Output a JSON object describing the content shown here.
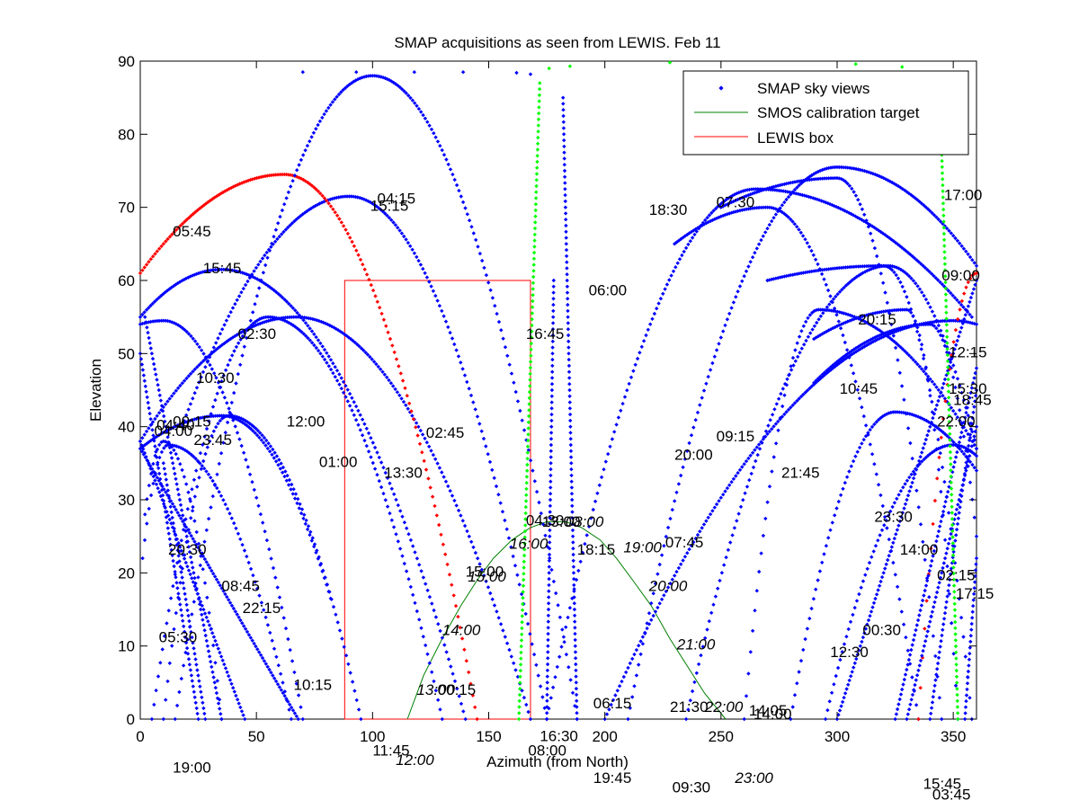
{
  "chart_data": {
    "type": "scatter",
    "title": "SMAP acquisitions as seen from LEWIS. Feb 11",
    "xlabel": "Azimuth (from North)",
    "ylabel": "Elevation",
    "xlim": [
      0,
      360
    ],
    "ylim": [
      0,
      90
    ],
    "xticks": [
      "0",
      "50",
      "100",
      "150",
      "200",
      "250",
      "300",
      "350"
    ],
    "yticks": [
      "0",
      "10",
      "20",
      "30",
      "40",
      "50",
      "60",
      "70",
      "80",
      "90"
    ],
    "grid": false,
    "legend_position": "top-right",
    "legend": {
      "sky": "SMAP sky views",
      "smos": "SMOS calibration target",
      "box": "LEWIS box"
    },
    "colors": {
      "sky": "#0000ff",
      "highlight_red": "#ff0000",
      "highlight_green": "#00ff00",
      "smos": "#007f00",
      "box": "#ff0000"
    },
    "lewis_box": {
      "az": [
        88,
        168
      ],
      "el": [
        0,
        60
      ]
    },
    "smos_track": {
      "az": [
        115,
        122,
        130,
        138,
        145,
        152,
        160,
        168,
        175,
        183,
        190,
        198,
        205,
        212,
        220,
        228,
        235,
        243,
        252
      ],
      "el": [
        0,
        6,
        11,
        15.5,
        19,
        22,
        24.5,
        26.2,
        27,
        27,
        26.2,
        24.5,
        22,
        19,
        15.5,
        11,
        7.5,
        3.5,
        0
      ]
    },
    "passes": [
      {
        "color": "sky",
        "type": "arc",
        "a0": 0,
        "e0": 55,
        "peak_az": 35,
        "peak_el": 61.5,
        "a1": 140,
        "e1": 0
      },
      {
        "color": "sky",
        "type": "arc",
        "a0": 0,
        "e0": 54,
        "peak_az": 10,
        "peak_el": 54.5,
        "a1": 70,
        "e1": 0
      },
      {
        "color": "sky",
        "type": "arc",
        "a0": 0,
        "e0": 38,
        "peak_az": 67,
        "peak_el": 55,
        "a1": 168,
        "e1": 0
      },
      {
        "color": "sky",
        "type": "arc",
        "a0": 0,
        "e0": 37,
        "peak_az": 35,
        "peak_el": 41.5,
        "a1": 82,
        "e1": 16.5
      },
      {
        "color": "sky",
        "type": "arc",
        "a0": 18,
        "e0": 40,
        "peak_az": 90,
        "peak_el": 71.5,
        "a1": 175,
        "e1": 0
      },
      {
        "color": "highlight_red",
        "type": "arc",
        "a0": 0,
        "e0": 61,
        "peak_az": 62,
        "peak_el": 74.5,
        "a1": 145,
        "e1": 0
      },
      {
        "color": "sky",
        "type": "arc",
        "a0": 15,
        "e0": 0,
        "peak_az": 100,
        "peak_el": 88,
        "a1": 188,
        "e1": 0
      },
      {
        "color": "sky",
        "type": "arc",
        "a0": 1,
        "e0": 22,
        "peak_az": 12,
        "peak_el": 37.5,
        "a1": 65,
        "e1": 0
      },
      {
        "color": "sky",
        "type": "arc",
        "a0": 2,
        "e0": 28,
        "peak_az": 10,
        "peak_el": 38,
        "a1": 35,
        "e1": 0
      },
      {
        "color": "sky",
        "type": "arc",
        "a0": 5,
        "e0": 0,
        "peak_az": 55,
        "peak_el": 55,
        "a1": 130,
        "e1": 0
      },
      {
        "color": "sky",
        "type": "arc",
        "a0": 10,
        "e0": 0,
        "peak_az": 38,
        "peak_el": 41.5,
        "a1": 95,
        "e1": 0
      },
      {
        "color": "sky",
        "type": "arc",
        "a0": 175,
        "e0": 0,
        "peak_az": 265,
        "peak_el": 72.5,
        "a1": 358,
        "e1": 55
      },
      {
        "color": "sky",
        "type": "arc",
        "a0": 210,
        "e0": 0,
        "peak_az": 300,
        "peak_el": 75.5,
        "a1": 360,
        "e1": 62
      },
      {
        "color": "sky",
        "type": "arc",
        "a0": 235,
        "e0": 0,
        "peak_az": 322,
        "peak_el": 62,
        "a1": 360,
        "e1": 37
      },
      {
        "color": "sky",
        "type": "arc",
        "a0": 260,
        "e0": 0,
        "peak_az": 292,
        "peak_el": 56,
        "a1": 360,
        "e1": 37
      },
      {
        "color": "sky",
        "type": "arc",
        "a0": 280,
        "e0": 0,
        "peak_az": 325,
        "peak_el": 42,
        "a1": 360,
        "e1": 34
      },
      {
        "color": "sky",
        "type": "arc",
        "a0": 200,
        "e0": 0,
        "peak_az": 350,
        "peak_el": 54.5,
        "a1": 360,
        "e1": 54
      },
      {
        "color": "sky",
        "type": "arc",
        "a0": 295,
        "e0": 0,
        "peak_az": 350,
        "peak_el": 37.5,
        "a1": 360,
        "e1": 36
      },
      {
        "color": "sky",
        "type": "arc",
        "a0": 270,
        "e0": 60,
        "peak_az": 320,
        "peak_el": 62,
        "a1": 358,
        "e1": 0
      },
      {
        "color": "sky",
        "type": "arc",
        "a0": 290,
        "e0": 52,
        "peak_az": 330,
        "peak_el": 56,
        "a1": 352,
        "e1": 0
      },
      {
        "color": "sky",
        "type": "arc",
        "a0": 250,
        "e0": 70,
        "peak_az": 300,
        "peak_el": 74,
        "a1": 345,
        "e1": 0
      },
      {
        "color": "sky",
        "type": "arc",
        "a0": 230,
        "e0": 65,
        "peak_az": 270,
        "peak_el": 70,
        "a1": 335,
        "e1": 0
      },
      {
        "color": "sky",
        "type": "arc",
        "a0": 290,
        "e0": 46,
        "peak_az": 340,
        "peak_el": 54,
        "a1": 360,
        "e1": 25
      },
      {
        "color": "highlight_red",
        "type": "arc",
        "a0": 335,
        "e0": 0,
        "peak_az": 360,
        "peak_el": 61,
        "a1": 362,
        "e1": 61
      },
      {
        "color": "sky",
        "type": "line",
        "a0": 0,
        "e0": 37,
        "a1": 68,
        "e1": 0
      },
      {
        "color": "sky",
        "type": "line",
        "a0": 0,
        "e0": 38,
        "a1": 45,
        "e1": 0
      },
      {
        "color": "sky",
        "type": "line",
        "a0": 0,
        "e0": 50,
        "a1": 25,
        "e1": 0
      },
      {
        "color": "sky",
        "type": "line",
        "a0": 2,
        "e0": 55,
        "a1": 35,
        "e1": 0
      },
      {
        "color": "sky",
        "type": "line",
        "a0": 10,
        "e0": 35,
        "a1": 28,
        "e1": 0
      },
      {
        "color": "sky",
        "type": "line",
        "a0": 325,
        "e0": 0,
        "a1": 360,
        "e1": 48
      },
      {
        "color": "sky",
        "type": "line",
        "a0": 330,
        "e0": 0,
        "a1": 360,
        "e1": 40
      },
      {
        "color": "sky",
        "type": "line",
        "a0": 340,
        "e0": 0,
        "a1": 360,
        "e1": 45
      },
      {
        "color": "sky",
        "type": "line",
        "a0": 355,
        "e0": 0,
        "a1": 360,
        "e1": 22
      },
      {
        "color": "sky",
        "type": "line",
        "a0": 300,
        "e0": 0,
        "a1": 360,
        "e1": 60
      },
      {
        "color": "highlight_green",
        "type": "vert",
        "a0": 163,
        "e0": 0,
        "a1": 172,
        "e1": 87
      },
      {
        "color": "highlight_green",
        "type": "vert",
        "a0": 352,
        "e0": 0,
        "a1": 345,
        "e1": 78
      },
      {
        "color": "sky",
        "type": "vert",
        "a0": 188,
        "e0": 0,
        "a1": 182,
        "e1": 85
      },
      {
        "color": "sky",
        "type": "vert",
        "a0": 175,
        "e0": 0,
        "a1": 178,
        "e1": 60
      }
    ],
    "top_points": {
      "sky": [
        [
          70,
          88.5
        ],
        [
          93,
          88.5
        ],
        [
          118,
          88.5
        ],
        [
          139,
          88.5
        ],
        [
          162,
          88.4
        ],
        [
          168,
          88.2
        ]
      ],
      "highlight_green": [
        [
          176,
          89
        ],
        [
          185,
          89.3
        ],
        [
          228,
          89.8
        ],
        [
          308,
          89.6
        ],
        [
          328,
          89.2
        ]
      ]
    },
    "time_labels": [
      {
        "az": 102,
        "el": 70.5,
        "text": "04:15",
        "italic": false
      },
      {
        "az": 99,
        "el": 69.5,
        "text": "15:15",
        "italic": false
      },
      {
        "az": 248,
        "el": 70,
        "text": "07:30",
        "italic": false
      },
      {
        "az": 219,
        "el": 69,
        "text": "18:30",
        "italic": false
      },
      {
        "az": 346,
        "el": 71,
        "text": "17:00",
        "italic": false
      },
      {
        "az": 14,
        "el": 66,
        "text": "05:45",
        "italic": false
      },
      {
        "az": 27,
        "el": 61,
        "text": "15:45",
        "italic": false
      },
      {
        "az": 193,
        "el": 58,
        "text": "06:00",
        "italic": false
      },
      {
        "az": 345,
        "el": 60,
        "text": "09:00",
        "italic": false
      },
      {
        "az": 166,
        "el": 52,
        "text": "16:45",
        "italic": false
      },
      {
        "az": 42,
        "el": 52,
        "text": "02:30",
        "italic": false
      },
      {
        "az": 309,
        "el": 54,
        "text": "20:15",
        "italic": false
      },
      {
        "az": 348,
        "el": 49.5,
        "text": "12:15",
        "italic": false
      },
      {
        "az": 24,
        "el": 46,
        "text": "10:30",
        "italic": false
      },
      {
        "az": 301,
        "el": 44.5,
        "text": "10:45",
        "italic": false
      },
      {
        "az": 348,
        "el": 44.5,
        "text": "15:30",
        "italic": false
      },
      {
        "az": 350,
        "el": 43,
        "text": "18:45",
        "italic": false
      },
      {
        "az": 343,
        "el": 40,
        "text": "22:00",
        "italic": false
      },
      {
        "az": 14,
        "el": 40,
        "text": "00:15",
        "italic": false
      },
      {
        "az": 7,
        "el": 39.5,
        "text": "04:40",
        "italic": false
      },
      {
        "az": 6,
        "el": 38.7,
        "text": "04:00",
        "italic": false
      },
      {
        "az": 63,
        "el": 40,
        "text": "12:00",
        "italic": false
      },
      {
        "az": 23,
        "el": 37.5,
        "text": "23:45",
        "italic": false
      },
      {
        "az": 248,
        "el": 38,
        "text": "09:15",
        "italic": false
      },
      {
        "az": 123,
        "el": 38.5,
        "text": "02:45",
        "italic": false
      },
      {
        "az": 77,
        "el": 34.5,
        "text": "01:00",
        "italic": false
      },
      {
        "az": 230,
        "el": 35.5,
        "text": "20:00",
        "italic": false
      },
      {
        "az": 105,
        "el": 33,
        "text": "13:30",
        "italic": false
      },
      {
        "az": 276,
        "el": 33,
        "text": "21:45",
        "italic": false
      },
      {
        "az": 316,
        "el": 27,
        "text": "23:30",
        "italic": false
      },
      {
        "az": 166,
        "el": 26.5,
        "text": "04:30",
        "italic": false
      },
      {
        "az": 173,
        "el": 26.3,
        "text": "13:00",
        "italic": false
      },
      {
        "az": 183,
        "el": 26.3,
        "text": "08:00",
        "italic": true
      },
      {
        "az": 226,
        "el": 23.5,
        "text": "07:45",
        "italic": false
      },
      {
        "az": 159,
        "el": 23.3,
        "text": "16:00",
        "italic": true
      },
      {
        "az": 327,
        "el": 22.5,
        "text": "14:00",
        "italic": false
      },
      {
        "az": 188,
        "el": 22.5,
        "text": "18:15",
        "italic": false
      },
      {
        "az": 208,
        "el": 22.8,
        "text": "19:00",
        "italic": true
      },
      {
        "az": 12,
        "el": 22.5,
        "text": "20:30",
        "italic": false
      },
      {
        "az": 140,
        "el": 19.5,
        "text": "15:00",
        "italic": false
      },
      {
        "az": 141,
        "el": 18.8,
        "text": "15:00",
        "italic": true
      },
      {
        "az": 343,
        "el": 19,
        "text": "02:15",
        "italic": false
      },
      {
        "az": 219,
        "el": 17.5,
        "text": "20:00",
        "italic": true
      },
      {
        "az": 35,
        "el": 17.5,
        "text": "08:45",
        "italic": false
      },
      {
        "az": 351,
        "el": 16.5,
        "text": "17:15",
        "italic": false
      },
      {
        "az": 44,
        "el": 14.5,
        "text": "22:15",
        "italic": false
      },
      {
        "az": 130,
        "el": 11.5,
        "text": "14:00",
        "italic": true
      },
      {
        "az": 311,
        "el": 11.5,
        "text": "00:30",
        "italic": false
      },
      {
        "az": 8,
        "el": 10.5,
        "text": "05:30",
        "italic": false
      },
      {
        "az": 297,
        "el": 8.5,
        "text": "12:30",
        "italic": false
      },
      {
        "az": 231,
        "el": 9.5,
        "text": "21:00",
        "italic": true
      },
      {
        "az": 66,
        "el": 4,
        "text": "10:15",
        "italic": false
      },
      {
        "az": 119,
        "el": 3.3,
        "text": "13:00",
        "italic": true
      },
      {
        "az": 128,
        "el": 3.3,
        "text": "00:15",
        "italic": false
      },
      {
        "az": 195,
        "el": 1.5,
        "text": "06:15",
        "italic": false
      },
      {
        "az": 228,
        "el": 1.0,
        "text": "21:30",
        "italic": false
      },
      {
        "az": 243,
        "el": 1.0,
        "text": "22:00",
        "italic": true
      },
      {
        "az": 262,
        "el": 0.5,
        "text": "14:05",
        "italic": false
      },
      {
        "az": 264,
        "el": 0.0,
        "text": "14:00",
        "italic": false
      }
    ],
    "below_axis_labels": [
      {
        "az": 172,
        "el": -3.0,
        "text": "16:30",
        "italic": false
      },
      {
        "az": 100,
        "el": -5.0,
        "text": "11:45",
        "italic": false
      },
      {
        "az": 167,
        "el": -5.0,
        "text": "08:00",
        "italic": false
      },
      {
        "az": 110,
        "el": -6.3,
        "text": "12:00",
        "italic": true
      },
      {
        "az": 14,
        "el": -7.3,
        "text": "19:00",
        "italic": false
      },
      {
        "az": 195,
        "el": -8.7,
        "text": "19:45",
        "italic": false
      },
      {
        "az": 256,
        "el": -8.7,
        "text": "23:00",
        "italic": true
      },
      {
        "az": 229,
        "el": -10.0,
        "text": "09:30",
        "italic": false
      },
      {
        "az": 337,
        "el": -9.5,
        "text": "15:45",
        "italic": false
      },
      {
        "az": 341,
        "el": -11.0,
        "text": "03:45",
        "italic": false
      }
    ]
  }
}
